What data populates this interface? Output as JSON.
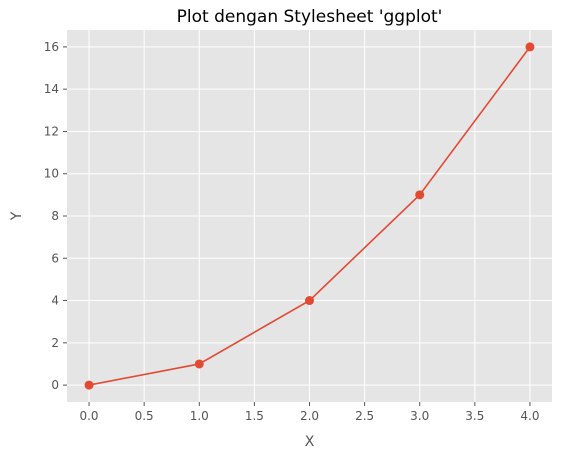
{
  "chart_data": {
    "type": "line",
    "title": "Plot dengan Stylesheet 'ggplot'",
    "xlabel": "X",
    "ylabel": "Y",
    "x": [
      0,
      1,
      2,
      3,
      4
    ],
    "series": [
      {
        "values": [
          0,
          1,
          4,
          9,
          16
        ],
        "color": "#E24A33",
        "marker": "circle"
      }
    ],
    "xlim": [
      -0.2,
      4.2
    ],
    "ylim": [
      -0.8,
      16.8
    ],
    "xticks": [
      0.0,
      0.5,
      1.0,
      1.5,
      2.0,
      2.5,
      3.0,
      3.5,
      4.0
    ],
    "xtick_labels": [
      "0.0",
      "0.5",
      "1.0",
      "1.5",
      "2.0",
      "2.5",
      "3.0",
      "3.5",
      "4.0"
    ],
    "yticks": [
      0,
      2,
      4,
      6,
      8,
      10,
      12,
      14,
      16
    ],
    "ytick_labels": [
      "0",
      "2",
      "4",
      "6",
      "8",
      "10",
      "12",
      "14",
      "16"
    ],
    "grid": true,
    "style": {
      "plot_background": "#E5E5E5",
      "grid_color": "#FFFFFF",
      "tick_color": "#555555",
      "label_color": "#555555"
    }
  }
}
